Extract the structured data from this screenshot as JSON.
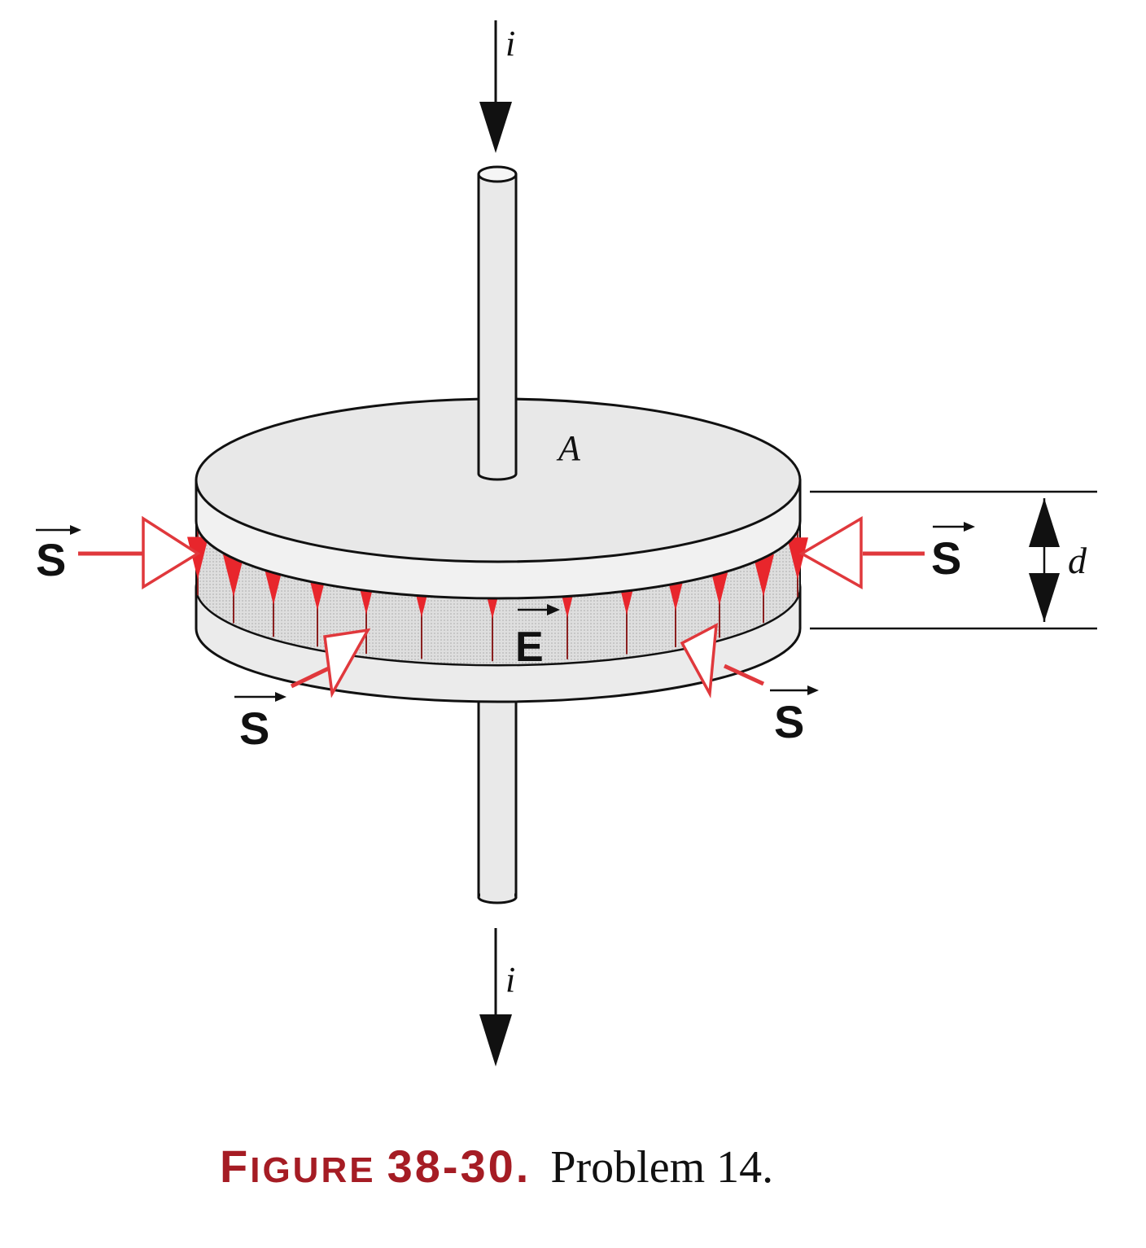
{
  "labels": {
    "current_top": "i",
    "current_bottom": "i",
    "area": "A",
    "separation": "d",
    "field": "E",
    "poynting_left": "S",
    "poynting_right": "S",
    "poynting_front_left": "S",
    "poynting_front_right": "S"
  },
  "caption": {
    "figure_label": "FIGURE 38-30.",
    "figure_label_prefix": "F",
    "figure_label_small": "IGURE",
    "figure_number": "38-30.",
    "text": "Problem 14."
  },
  "colors": {
    "plate_fill": "#ebebeb",
    "gap_fill": "#d4d4d4",
    "outline": "#111111",
    "field_red": "#e8262c",
    "poynting_red": "#e0383c",
    "caption_label": "#a51c24"
  }
}
